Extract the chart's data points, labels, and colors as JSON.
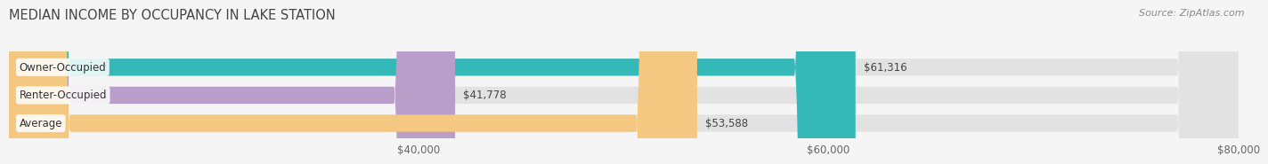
{
  "title": "MEDIAN INCOME BY OCCUPANCY IN LAKE STATION",
  "source": "Source: ZipAtlas.com",
  "categories": [
    "Owner-Occupied",
    "Renter-Occupied",
    "Average"
  ],
  "values": [
    61316,
    41778,
    53588
  ],
  "bar_colors": [
    "#35b8b8",
    "#b89ec8",
    "#f5c882"
  ],
  "bar_labels": [
    "$61,316",
    "$41,778",
    "$53,588"
  ],
  "xmin": 20000,
  "xmax": 80000,
  "xticks": [
    40000,
    60000,
    80000
  ],
  "xtick_labels": [
    "$40,000",
    "$60,000",
    "$80,000"
  ],
  "background_color": "#f5f5f5",
  "bar_bg_color": "#e2e2e2",
  "title_fontsize": 10.5,
  "label_fontsize": 8.5,
  "source_fontsize": 8,
  "tick_fontsize": 8.5
}
